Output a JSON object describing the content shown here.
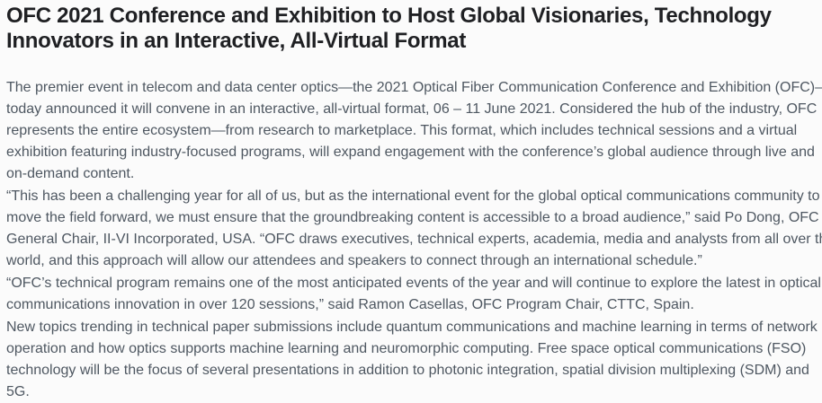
{
  "page": {
    "background_color": "#fbfbfb",
    "headline_color": "#1f2023",
    "body_text_color": "#4e5761"
  },
  "article": {
    "headline": {
      "full_text": "OFC 2021 Conference and Exhibition to Host Global Visionaries, Technology Innovators in an Interactive, All-Virtual Format",
      "lines": [
        "OFC 2021 Conference and Exhibition to Host Global Visionaries, Technology",
        "Innovators in an Interactive, All-Virtual Format"
      ]
    },
    "paragraphs": [
      {
        "lines": [
          "The premier event in telecom and data center optics—the 2021 Optical Fiber Communication Conference and Exhibition (OFC)—",
          "today announced it will convene in an interactive, all-virtual format, 06 – 11 June 2021. Considered the hub of the industry, OFC",
          "represents the entire ecosystem—from research to marketplace. This format, which includes technical sessions and a virtual",
          "exhibition featuring industry-focused programs, will expand engagement with the conference’s global audience through live and",
          "on-demand content."
        ]
      },
      {
        "lines": [
          "“This has been a challenging year for all of us, but as the international event for the global optical communications community to",
          "move the field forward, we must ensure that the groundbreaking content is accessible to a broad audience,” said Po Dong, OFC",
          "General Chair, II-VI Incorporated, USA. “OFC draws executives, technical experts, academia, media and analysts from all over the",
          "world, and this approach will allow our attendees and speakers to connect through an international schedule.”"
        ]
      },
      {
        "lines": [
          "“OFC’s technical program remains one of the most anticipated events of the year and will continue to explore the latest in optical",
          "communications innovation in over 120 sessions,” said Ramon Casellas, OFC Program Chair, CTTC, Spain."
        ]
      },
      {
        "lines": [
          "New topics trending in technical paper submissions include quantum communications and machine learning in terms of network",
          "operation and how optics supports machine learning and neuromorphic computing. Free space optical communications (FSO)",
          "technology will be the focus of several presentations in addition to photonic integration, spatial division multiplexing (SDM) and",
          "5G."
        ]
      }
    ]
  }
}
